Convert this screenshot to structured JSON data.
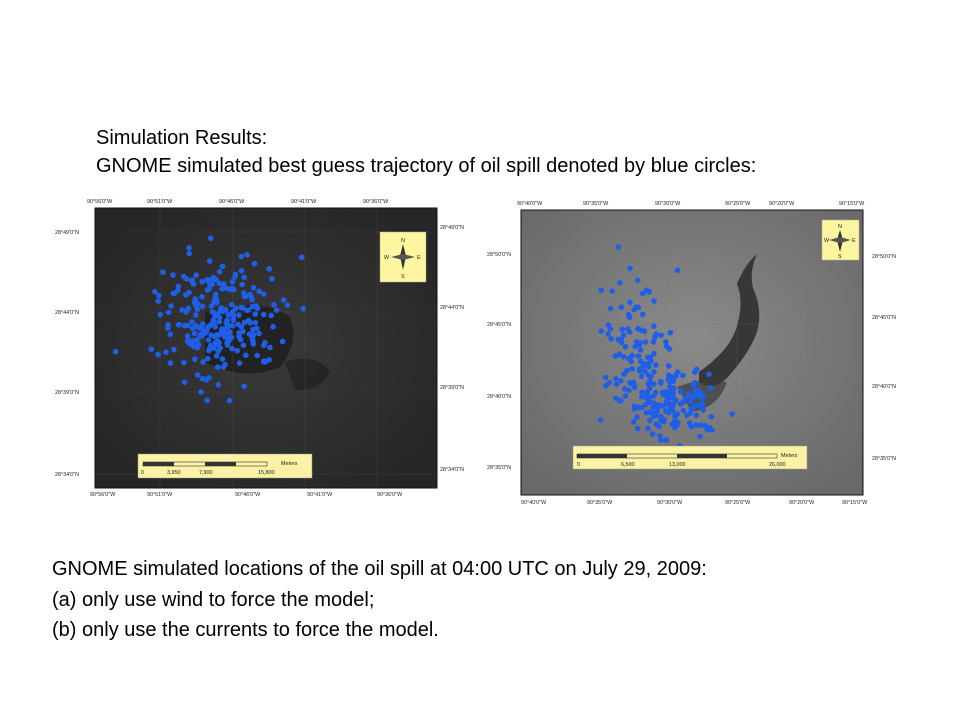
{
  "slide": {
    "heading": "Simulation Results:",
    "subheading": "GNOME simulated best guess trajectory of oil spill denoted by blue circles:",
    "caption": [
      "GNOME simulated locations of the oil spill at 04:00 UTC on July 29, 2009:",
      "(a) only use wind to force the model;",
      "(b) only use the currents to force the model."
    ]
  },
  "colors": {
    "spill_particle": "#1f5fe8",
    "north_arrow_bg": "#fdf5a0",
    "scale_bar_bg": "#fbf2a6"
  },
  "maps": [
    {
      "id": "a",
      "top_lon_labels": [
        "90°56'0\"W",
        "90°51'0\"W",
        "90°46'0\"W",
        "90°41'0\"W",
        "90°36'0\"W"
      ],
      "bottom_lon_labels": [
        "90°56'0\"W",
        "90°51'0\"W",
        "90°46'0\"W",
        "90°41'0\"W",
        "90°36'0\"W"
      ],
      "left_lat_labels": [
        "28°49'0\"N",
        "28°44'0\"N",
        "28°39'0\"N",
        "28°34'0\"N"
      ],
      "right_lat_labels": [
        "28°49'0\"N",
        "28°44'0\"N",
        "28°39'0\"N",
        "28°34'0\"N"
      ],
      "scale_bar": {
        "unit": "Meters",
        "ticks": [
          "0",
          "3,950",
          "7,900",
          "15,800"
        ]
      },
      "compass": {
        "n": "N",
        "s": "S",
        "e": "E",
        "w": "W"
      }
    },
    {
      "id": "b",
      "top_lon_labels": [
        "90°40'0\"W",
        "90°35'0\"W",
        "90°30'0\"W",
        "90°25'0\"W",
        "90°20'0\"W",
        "90°15'0\"W"
      ],
      "bottom_lon_labels": [
        "90°40'0\"W",
        "90°35'0\"W",
        "90°30'0\"W",
        "90°25'0\"W",
        "90°20'0\"W",
        "90°15'0\"W"
      ],
      "left_lat_labels": [
        "28°50'0\"N",
        "28°45'0\"N",
        "28°40'0\"N",
        "28°35'0\"N"
      ],
      "right_lat_labels": [
        "28°50'0\"N",
        "28°45'0\"N",
        "28°40'0\"N",
        "28°35'0\"N"
      ],
      "scale_bar": {
        "unit": "Meters",
        "ticks": [
          "0",
          "6,500",
          "13,000",
          "26,000"
        ]
      },
      "compass": {
        "n": "N",
        "s": "S",
        "e": "E",
        "w": "W"
      }
    }
  ]
}
